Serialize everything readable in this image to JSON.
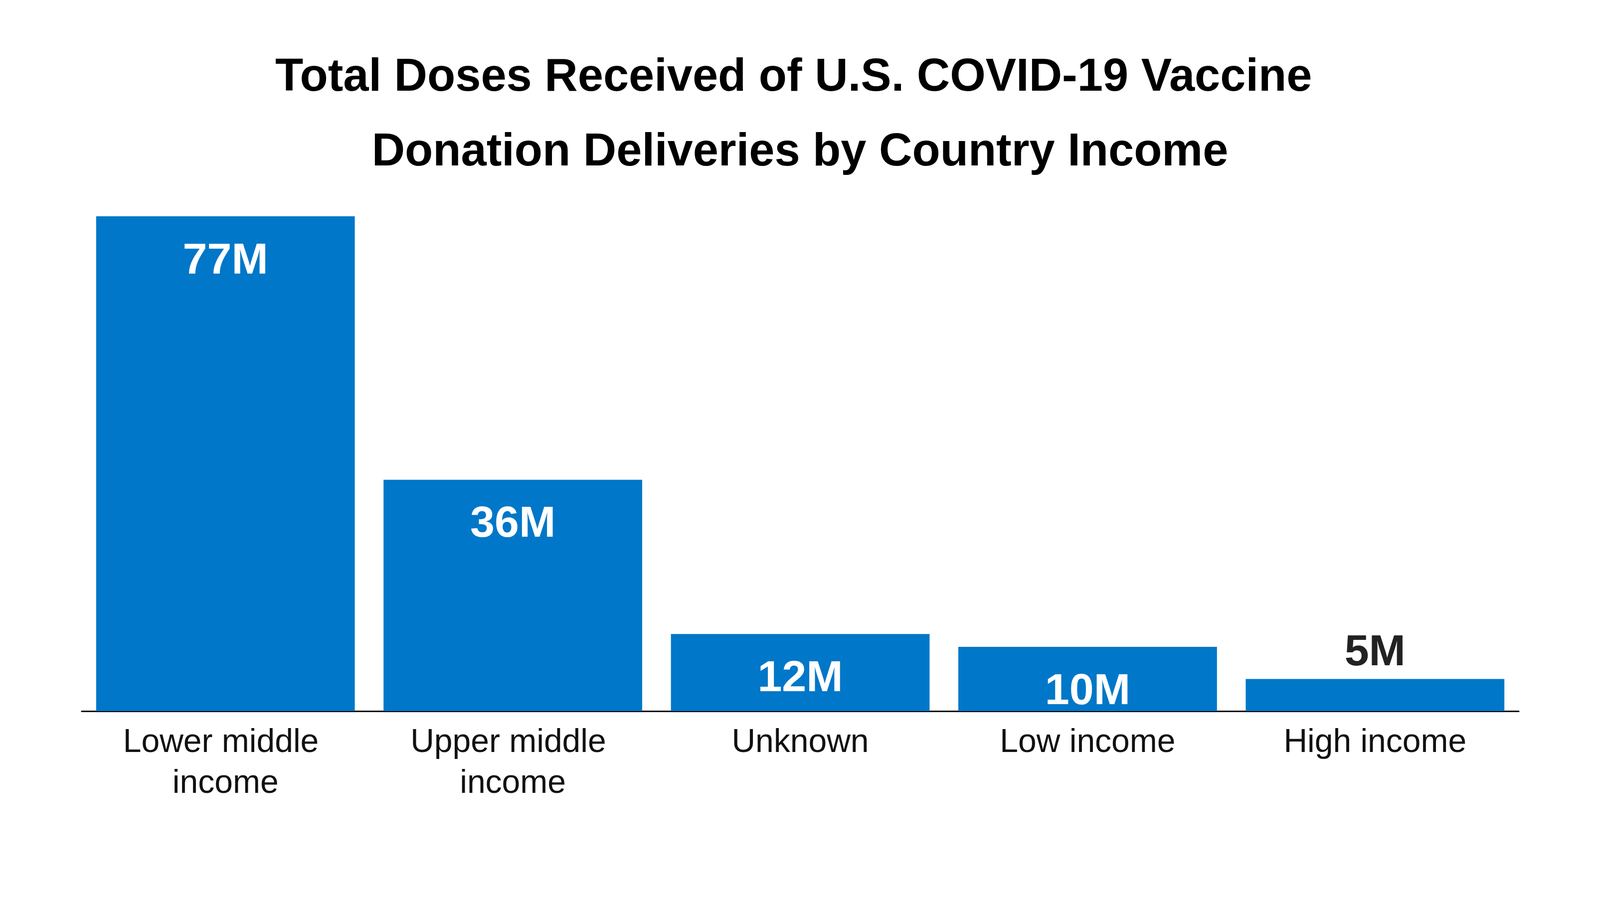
{
  "chart_data": {
    "type": "bar",
    "title": "Total Doses Received of U.S. COVID-19 Vaccine Donation Deliveries by Country Income",
    "categories": [
      "Lower middle income",
      "Upper middle income",
      "Unknown",
      "Low income",
      "High income"
    ],
    "values": [
      77,
      36,
      12,
      10,
      5
    ],
    "value_labels": [
      "77M",
      "36M",
      "12M",
      "10M",
      "5M"
    ],
    "color": "#0077c8",
    "ylim": [
      0,
      77
    ],
    "grid": false,
    "data_labels": true,
    "tick_labels": "x"
  }
}
